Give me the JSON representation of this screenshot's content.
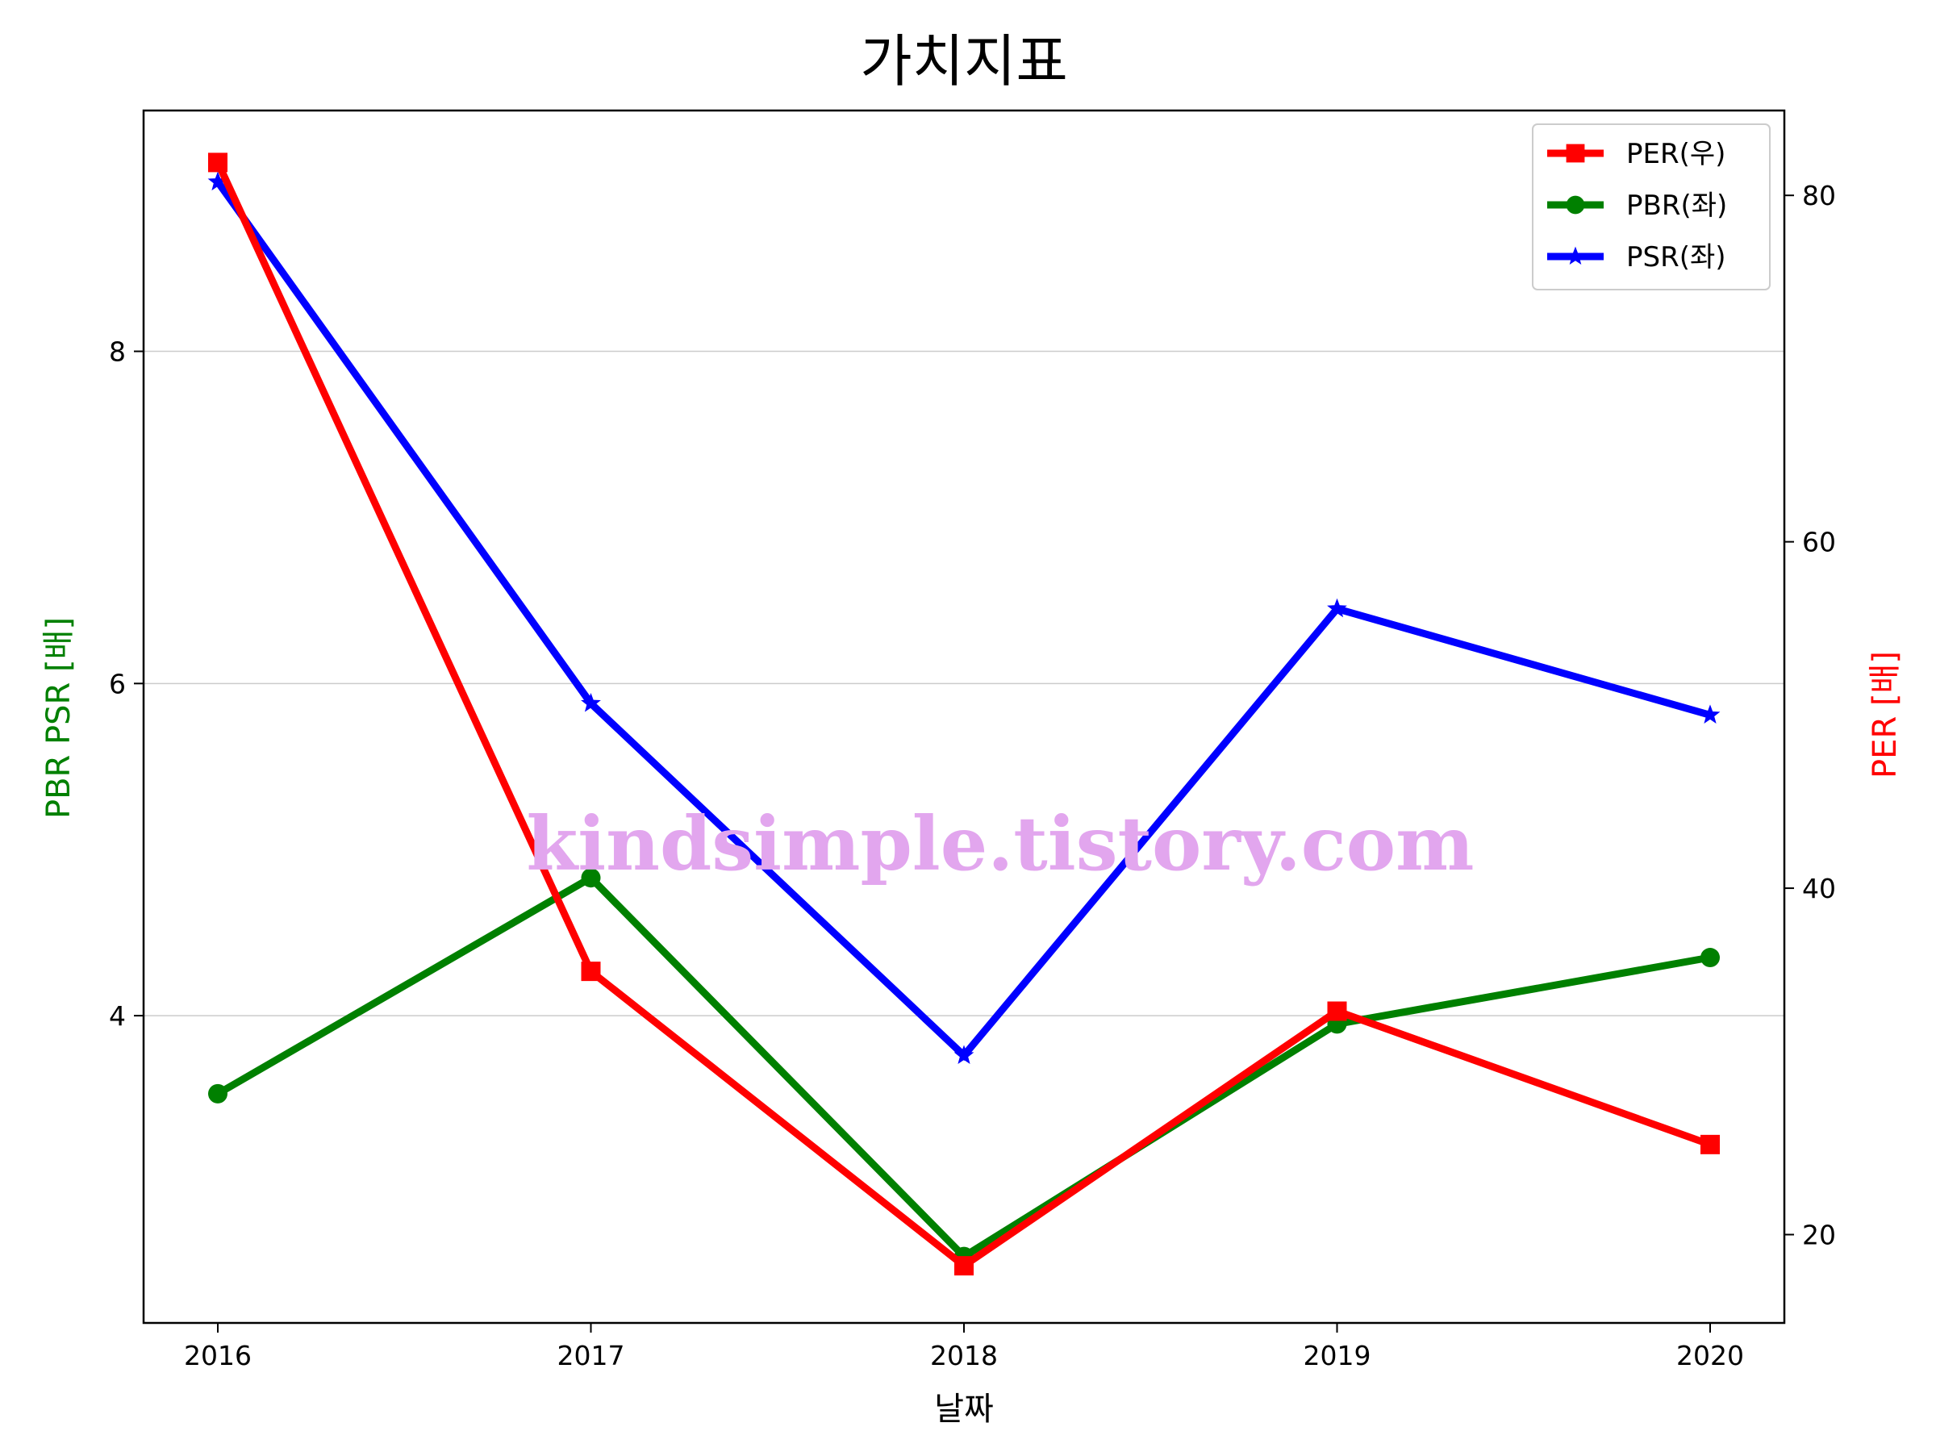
{
  "chart_data": {
    "type": "line",
    "title": "가치지표",
    "xlabel": "날짜",
    "ylabel_left": "PBR PSR [배]",
    "ylabel_right": "PER [배]",
    "categories": [
      "2016",
      "2017",
      "2018",
      "2019",
      "2020"
    ],
    "ylim_left": [
      2.15,
      9.45
    ],
    "yticks_left": [
      4,
      6,
      8
    ],
    "ylim_right": [
      14.9,
      84.9
    ],
    "yticks_right": [
      20,
      40,
      60,
      80
    ],
    "grid": "horizontal (left axis)",
    "legend_position": "top-right",
    "series": [
      {
        "name": "PER(우)",
        "axis": "right",
        "color": "#ff0000",
        "marker": "square",
        "values": [
          81.9,
          35.2,
          18.2,
          32.9,
          25.2
        ]
      },
      {
        "name": "PBR(좌)",
        "axis": "left",
        "color": "#008000",
        "marker": "circle",
        "values": [
          3.53,
          4.83,
          2.55,
          3.95,
          4.35
        ]
      },
      {
        "name": "PSR(좌)",
        "axis": "left",
        "color": "#0000ff",
        "marker": "star",
        "values": [
          9.02,
          5.88,
          3.76,
          6.45,
          5.81
        ]
      }
    ],
    "watermark": "kindsimple.tistory.com"
  }
}
